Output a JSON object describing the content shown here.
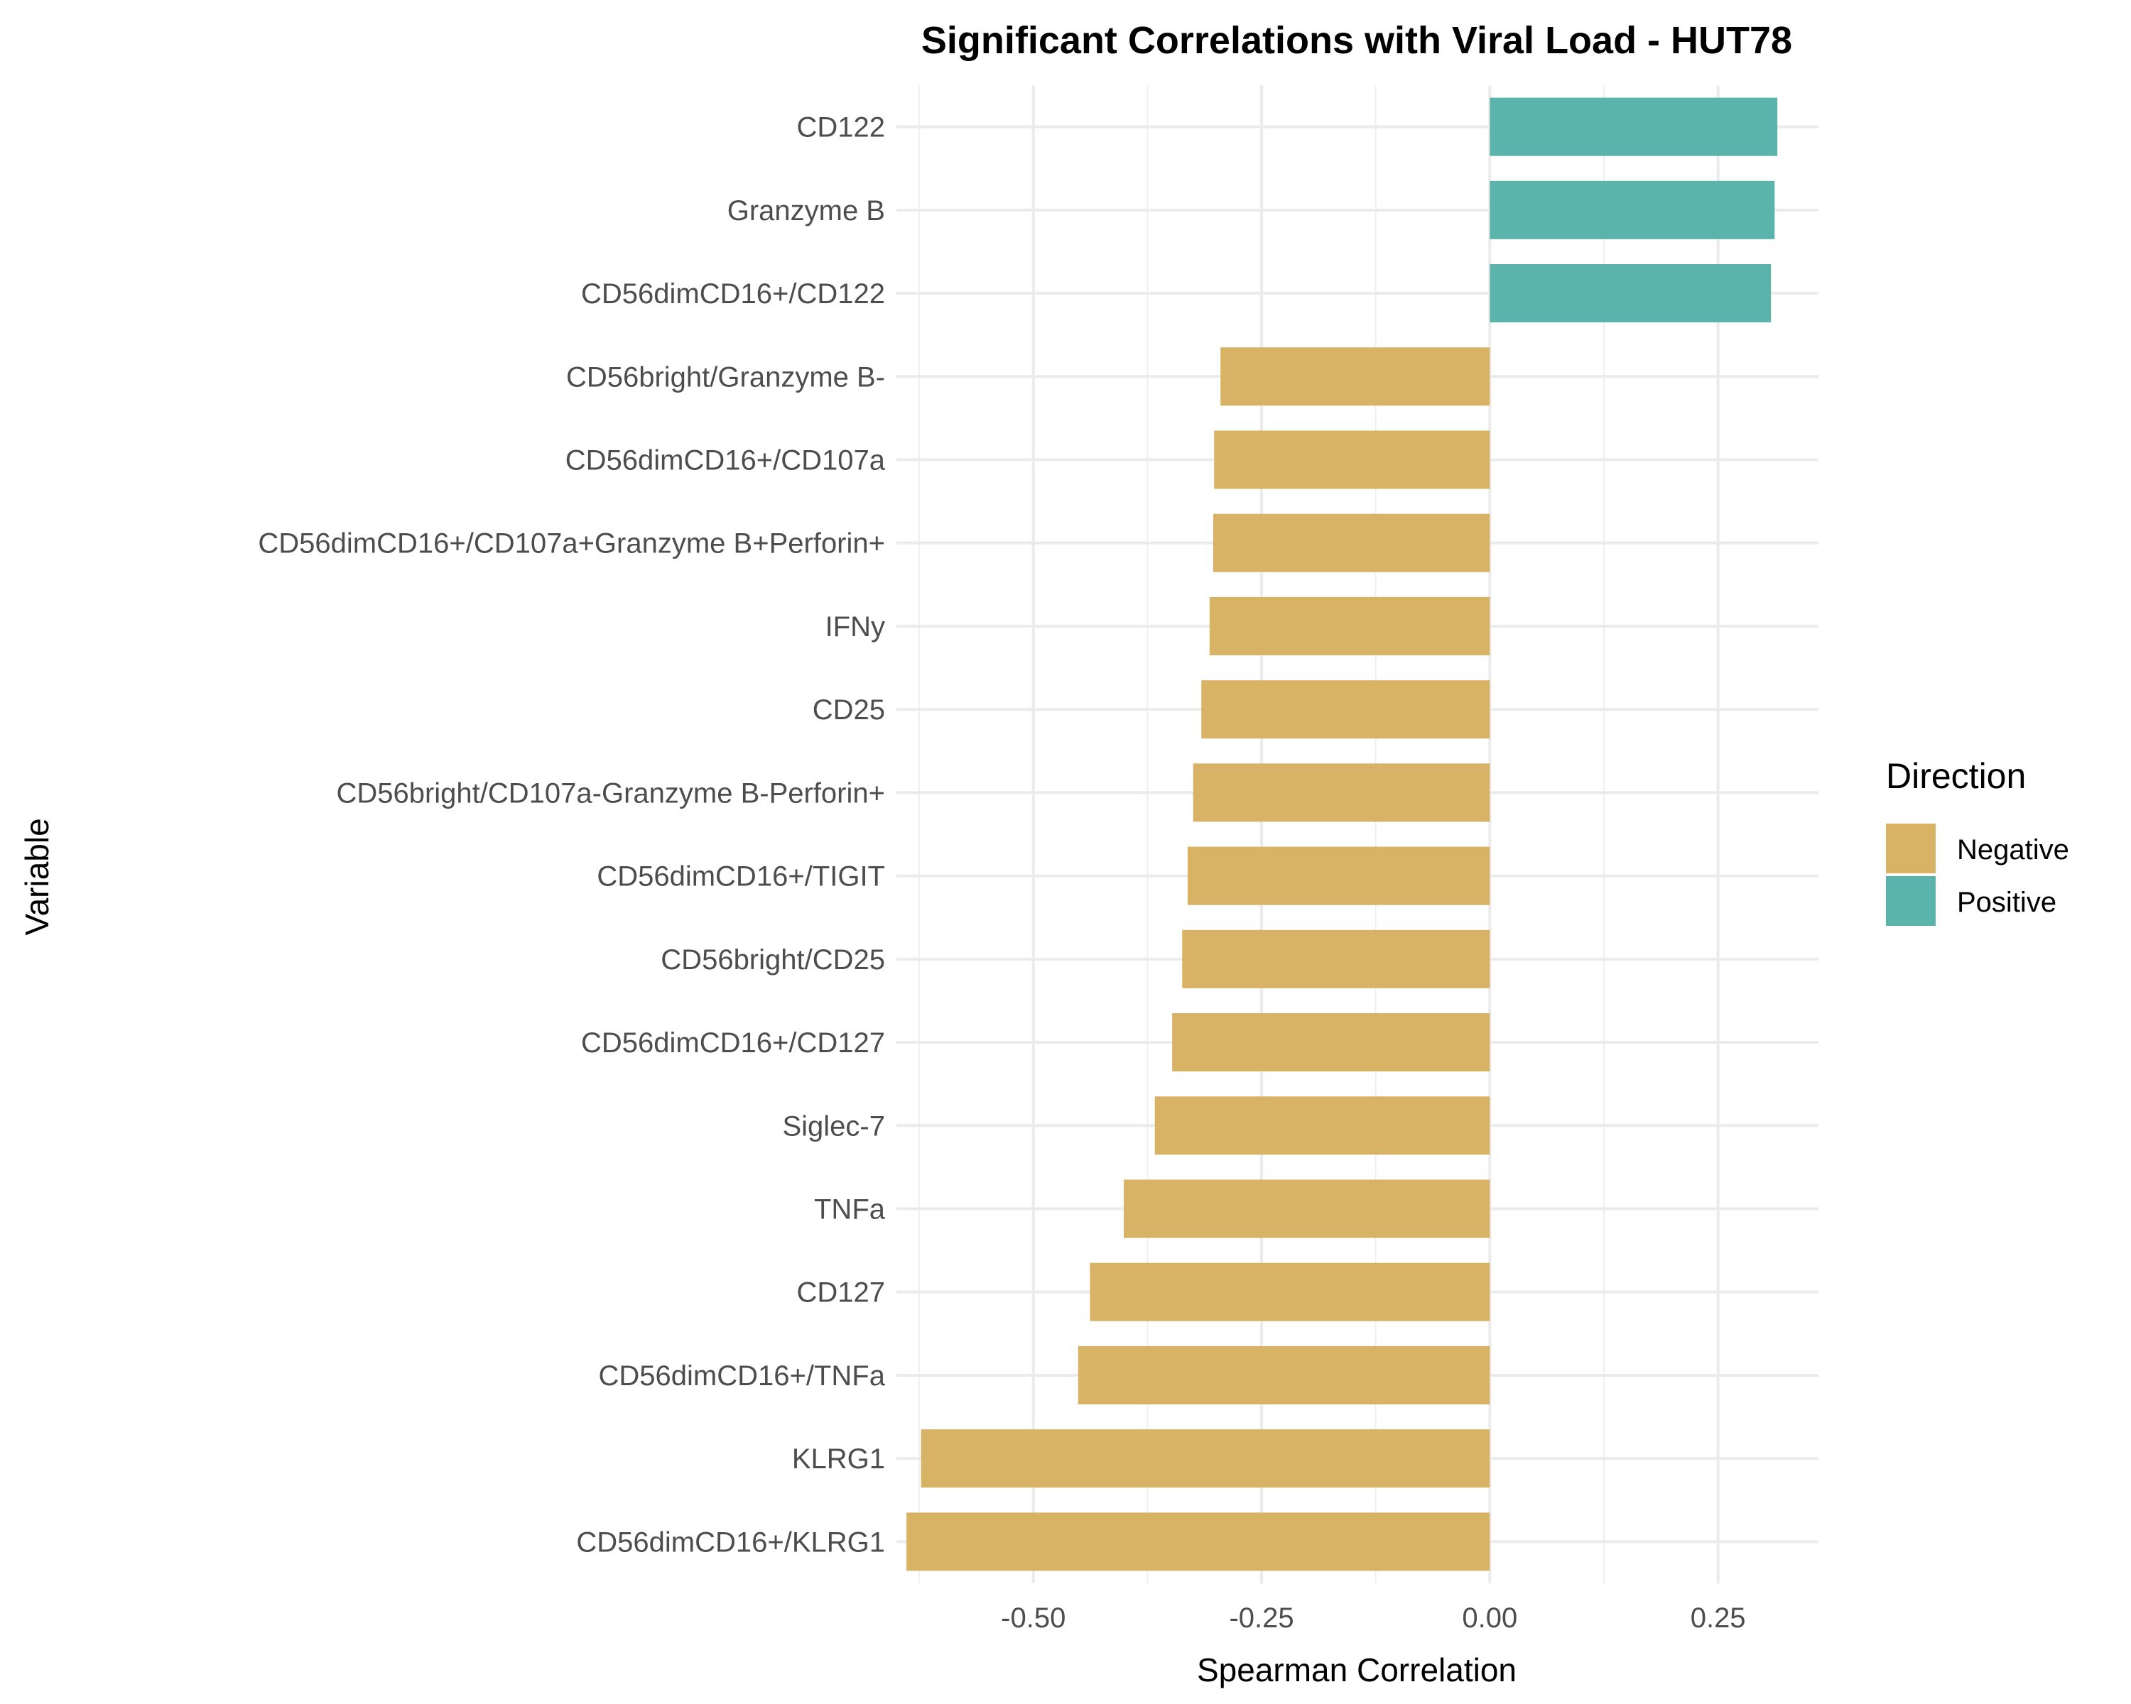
{
  "chart_data": {
    "type": "bar",
    "orientation": "horizontal",
    "title": "Significant Correlations with Viral Load - HUT78",
    "xlabel": "Spearman Correlation",
    "ylabel": "Variable",
    "xlim": [
      -0.65,
      0.36
    ],
    "x_ticks": [
      -0.5,
      -0.25,
      0.0,
      0.25
    ],
    "x_tick_labels": [
      "-0.50",
      "-0.25",
      "0.00",
      "0.25"
    ],
    "grid": true,
    "legend": {
      "title": "Direction",
      "placement": "right",
      "entries": [
        {
          "label": "Negative",
          "color": "#d8b365"
        },
        {
          "label": "Positive",
          "color": "#5ab4ac"
        }
      ]
    },
    "categories": [
      "CD122",
      "Granzyme B",
      "CD56dimCD16+/CD122",
      "CD56bright/Granzyme B-",
      "CD56dimCD16+/CD107a",
      "CD56dimCD16+/CD107a+Granzyme B+Perforin+",
      "IFNy",
      "CD25",
      "CD56bright/CD107a-Granzyme B-Perforin+",
      "CD56dimCD16+/TIGIT",
      "CD56bright/CD25",
      "CD56dimCD16+/CD127",
      "Siglec-7",
      "TNFa",
      "CD127",
      "CD56dimCD16+/TNFa",
      "KLRG1",
      "CD56dimCD16+/KLRG1"
    ],
    "values": [
      0.315,
      0.312,
      0.308,
      -0.295,
      -0.302,
      -0.303,
      -0.307,
      -0.316,
      -0.325,
      -0.331,
      -0.337,
      -0.348,
      -0.367,
      -0.401,
      -0.438,
      -0.451,
      -0.623,
      -0.639
    ],
    "directions": [
      "Positive",
      "Positive",
      "Positive",
      "Negative",
      "Negative",
      "Negative",
      "Negative",
      "Negative",
      "Negative",
      "Negative",
      "Negative",
      "Negative",
      "Negative",
      "Negative",
      "Negative",
      "Negative",
      "Negative",
      "Negative"
    ]
  }
}
